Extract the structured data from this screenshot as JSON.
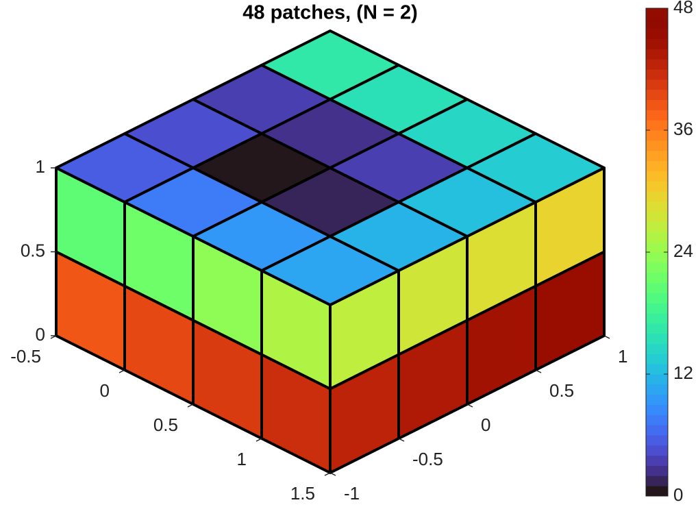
{
  "chart_data": {
    "type": "patch3d",
    "title": "48 patches, (N = 2)",
    "colormap": "turbo",
    "xlim": [
      -0.5,
      1.5
    ],
    "xticks": [
      -0.5,
      0,
      0.5,
      1,
      1.5
    ],
    "ylim": [
      -1,
      1
    ],
    "yticks": [
      -1,
      -0.5,
      0,
      0.5,
      1
    ],
    "zlim": [
      0,
      1
    ],
    "zticks": [
      0,
      0.5,
      1
    ],
    "clim": [
      0,
      48
    ],
    "cticks": [
      0,
      12,
      24,
      36,
      48
    ],
    "top": [
      [
        5,
        4,
        3,
        16
      ],
      [
        7,
        0,
        2,
        15
      ],
      [
        9,
        1,
        3,
        14
      ],
      [
        10,
        11,
        12,
        13
      ]
    ],
    "left": [
      [
        38,
        20
      ],
      [
        39,
        21
      ],
      [
        40,
        23
      ],
      [
        41,
        25
      ]
    ],
    "right": [
      [
        42,
        26
      ],
      [
        43,
        27
      ],
      [
        44,
        28
      ],
      [
        45,
        29
      ]
    ]
  }
}
